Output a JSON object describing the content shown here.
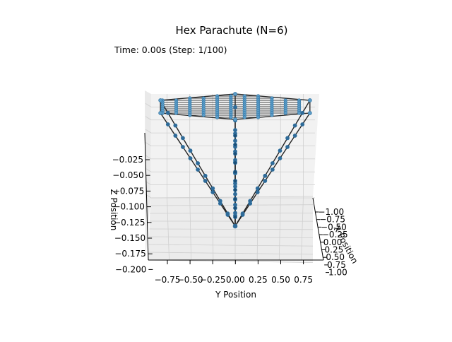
{
  "chart_data": {
    "type": "scatter",
    "projection": "3d",
    "title": "Hex Parachute (N=6)",
    "subtitle": "Time: 0.00s (Step: 1/100)",
    "xlabel": "X Position",
    "ylabel": "Y Position",
    "zlabel": "Z Position",
    "x_ticks": [
      "−1.00",
      "−0.75",
      "−0.50",
      "−0.25",
      "0.00",
      "0.25",
      "0.50",
      "0.75",
      "1.00"
    ],
    "y_ticks": [
      "−0.75",
      "−0.50",
      "−0.25",
      "0.00",
      "0.25",
      "0.50",
      "0.75"
    ],
    "z_ticks": [
      "−0.025",
      "−0.050",
      "−0.075",
      "−0.100",
      "−0.125",
      "−0.150",
      "−0.175",
      "−0.200"
    ],
    "xlim": [
      -1.0,
      1.0
    ],
    "ylim": [
      -0.87,
      0.87
    ],
    "zlim": [
      -0.2,
      0.0
    ],
    "canopy": {
      "shape": "hexagon",
      "vertex_radius": 1.0,
      "z": 0.0,
      "grid_divisions": 13
    },
    "payload": {
      "x": 0.0,
      "y": 0.0,
      "z": -0.2
    },
    "suspension_lines": {
      "count": 6,
      "points_per_line": 10
    },
    "grid": true,
    "colors": {
      "nodes": "#1f77b4",
      "node_edge": "#2b6f9f",
      "canopy_mesh": "#4a4a4a",
      "lines": "#222222",
      "pane": "#f2f2f2",
      "grid": "#cfcfcf"
    }
  }
}
